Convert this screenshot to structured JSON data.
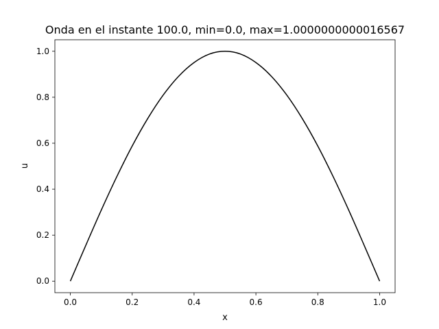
{
  "chart_data": {
    "type": "line",
    "title": "Onda en el instante 100.0, min=0.0, max=1.0000000000016567",
    "xlabel": "x",
    "ylabel": "u",
    "xlim": [
      -0.05,
      1.05
    ],
    "ylim": [
      -0.05,
      1.05
    ],
    "xticks": [
      0.0,
      0.2,
      0.4,
      0.6,
      0.8,
      1.0
    ],
    "yticks": [
      0.0,
      0.2,
      0.4,
      0.6,
      0.8,
      1.0
    ],
    "xtick_labels": [
      "0.0",
      "0.2",
      "0.4",
      "0.6",
      "0.8",
      "1.0"
    ],
    "ytick_labels": [
      "0.0",
      "0.2",
      "0.4",
      "0.6",
      "0.8",
      "1.0"
    ],
    "grid": false,
    "legend": "none",
    "series": [
      {
        "color": "#000000",
        "x": [
          0.0,
          0.05,
          0.1,
          0.15,
          0.2,
          0.25,
          0.3,
          0.35,
          0.4,
          0.45,
          0.5,
          0.55,
          0.6,
          0.65,
          0.7,
          0.75,
          0.8,
          0.85,
          0.9,
          0.95,
          1.0
        ],
        "y": [
          0.0,
          0.156,
          0.309,
          0.454,
          0.588,
          0.707,
          0.809,
          0.891,
          0.951,
          0.988,
          1.0,
          0.988,
          0.951,
          0.891,
          0.809,
          0.707,
          0.588,
          0.454,
          0.309,
          0.156,
          0.0
        ]
      }
    ]
  }
}
